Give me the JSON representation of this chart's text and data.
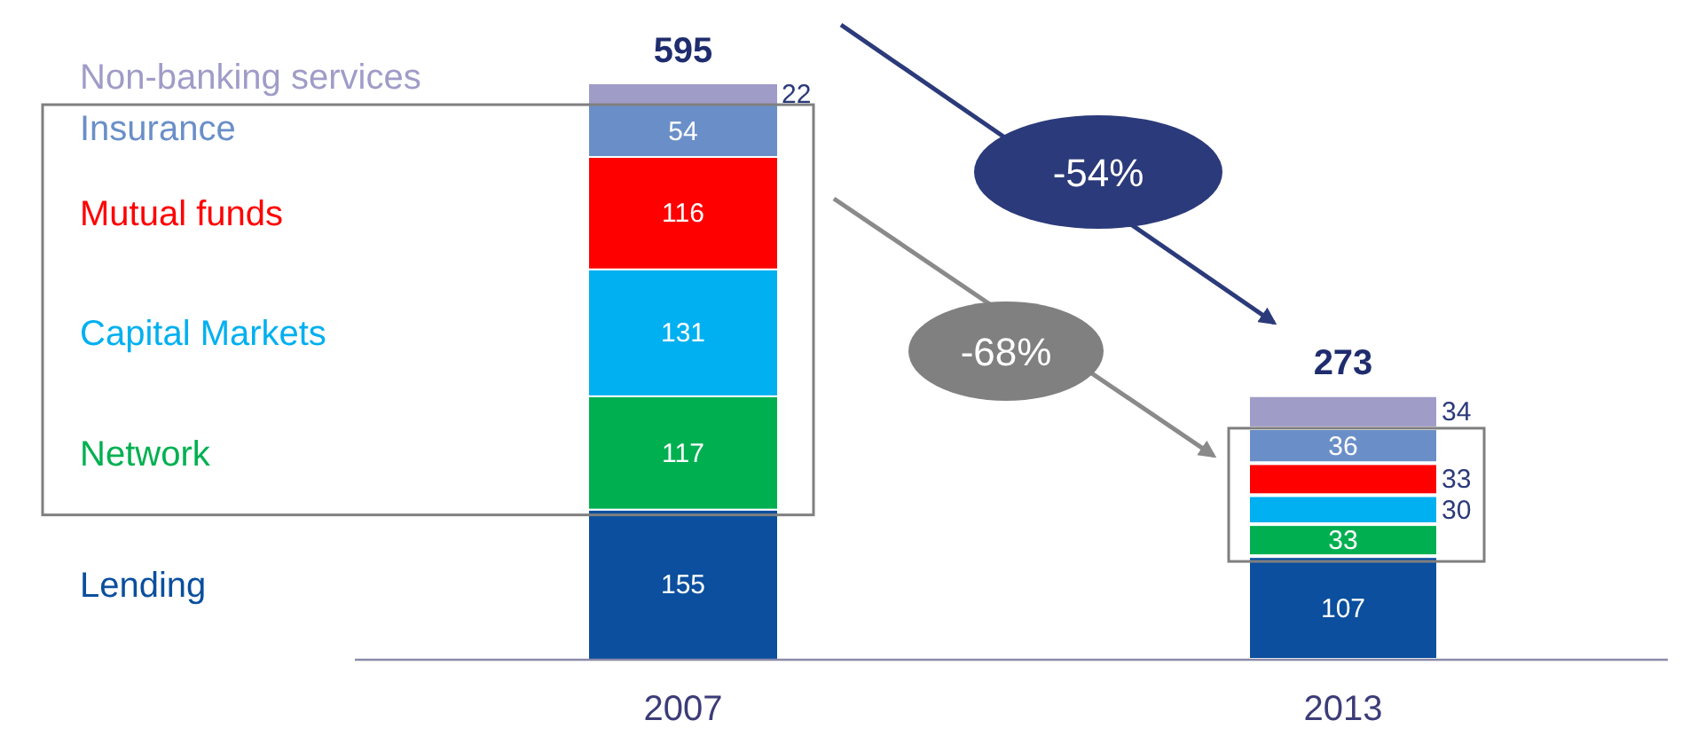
{
  "chart_data": {
    "type": "bar",
    "stacked": true,
    "categories": [
      "2007",
      "2013"
    ],
    "series": [
      {
        "name": "Lending",
        "color": "#0b4f9e",
        "values": [
          155,
          107
        ]
      },
      {
        "name": "Network",
        "color": "#00b050",
        "values": [
          117,
          33
        ]
      },
      {
        "name": "Capital Markets",
        "color": "#00b0f0",
        "values": [
          131,
          30
        ]
      },
      {
        "name": "Mutual funds",
        "color": "#ff0000",
        "values": [
          116,
          33
        ]
      },
      {
        "name": "Insurance",
        "color": "#6a8fc8",
        "values": [
          54,
          36
        ]
      },
      {
        "name": "Non-banking services",
        "color": "#a09cc8",
        "values": [
          22,
          34
        ]
      }
    ],
    "data_labels": true,
    "totals": [
      "595",
      "273"
    ],
    "annotations": [
      "-54%",
      "-68%"
    ]
  }
}
